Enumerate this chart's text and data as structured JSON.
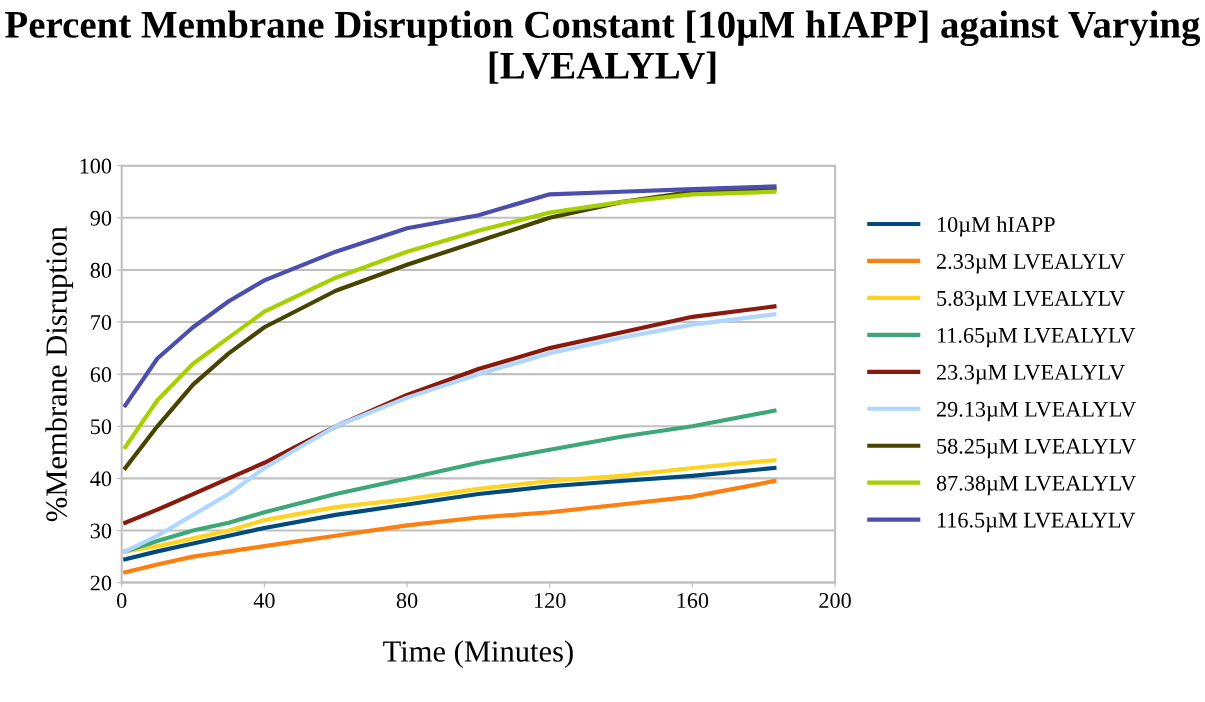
{
  "chart_data": {
    "type": "line",
    "title": "Percent Membrane Disruption Constant [10µM hIAPP] against Varying [LVEALYLV]",
    "xlabel": "Time (Minutes)",
    "ylabel": "%Membrane Disruption",
    "x": [
      1,
      10,
      20,
      30,
      40,
      60,
      80,
      100,
      120,
      140,
      160,
      183
    ],
    "series": [
      {
        "name": "10µM hIAPP",
        "color": "#004a7f",
        "values": [
          24.5,
          26,
          27.5,
          29,
          30.5,
          33,
          35,
          37,
          38.5,
          39.5,
          40.5,
          42
        ]
      },
      {
        "name": "2.33µM LVEALYLV",
        "color": "#ff7f0e",
        "values": [
          22,
          23.5,
          25,
          26,
          27,
          29,
          31,
          32.5,
          33.5,
          35,
          36.5,
          39.5
        ]
      },
      {
        "name": "5.83µM LVEALYLV",
        "color": "#ffd320",
        "values": [
          26,
          27,
          28.5,
          30,
          32,
          34.5,
          36,
          38,
          39.5,
          40.5,
          42,
          43.5
        ]
      },
      {
        "name": "11.65µM LVEALYLV",
        "color": "#3ea77a",
        "values": [
          26,
          28,
          30,
          31.5,
          33.5,
          37,
          40,
          43,
          45.5,
          48,
          50,
          53
        ]
      },
      {
        "name": "23.3µM LVEALYLV",
        "color": "#8b1a0e",
        "values": [
          31.5,
          34,
          37,
          40,
          43,
          50,
          56,
          61,
          65,
          68,
          71,
          73
        ]
      },
      {
        "name": "29.13µM LVEALYLV",
        "color": "#aed6ff",
        "values": [
          26,
          29,
          33,
          37,
          42,
          50,
          55.5,
          60,
          64,
          67,
          69.5,
          71.5
        ]
      },
      {
        "name": "58.25µM LVEALYLV",
        "color": "#474400",
        "values": [
          42,
          50,
          58,
          64,
          69,
          76,
          81,
          85.5,
          90,
          93,
          95,
          95.5
        ]
      },
      {
        "name": "87.38µM LVEALYLV",
        "color": "#a6d000",
        "values": [
          46,
          55,
          62,
          67,
          72,
          78.5,
          83.5,
          87.5,
          91,
          93,
          94.5,
          95
        ]
      },
      {
        "name": "116.5µM LVEALYLV",
        "color": "#4b4ead",
        "values": [
          54,
          63,
          69,
          74,
          78,
          83.5,
          88,
          90.5,
          94.5,
          95,
          95.5,
          96
        ]
      }
    ],
    "xlim": [
      0,
      200
    ],
    "xticks": [
      0,
      40,
      80,
      120,
      160,
      200
    ],
    "ylim": [
      20,
      100
    ],
    "yticks": [
      20,
      30,
      40,
      50,
      60,
      70,
      80,
      90,
      100
    ],
    "grid": "y",
    "legend": "right",
    "marker": "none",
    "line_style": "solid"
  }
}
